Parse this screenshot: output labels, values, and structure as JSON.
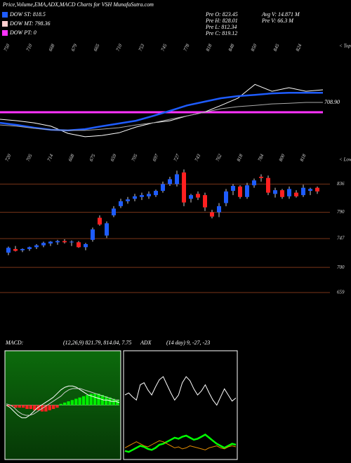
{
  "header": {
    "title": "Price,Volume,EMA,ADX,MACD Charts for VSH MunafaSutra.com",
    "legend": [
      {
        "label": "DOW ST: 818.5",
        "color": "#1e5cff"
      },
      {
        "label": "DOW MT: 798.36",
        "color": "#ffd0d0"
      },
      {
        "label": "DOW PT: 0",
        "color": "#ff33ff"
      }
    ],
    "stats_left": [
      "Pre  O: 823.45",
      "Pre  H: 828.01",
      "Pre  L: 812.34",
      "Pre  C: 819.12"
    ],
    "stats_right": [
      "Avg  V: 14.871 M",
      "Pre  V: 66.3 M"
    ]
  },
  "chart_data": [
    {
      "type": "line",
      "tops_label": "< Tops",
      "tops": [
        750,
        710,
        668,
        679,
        665,
        710,
        753,
        745,
        778,
        818,
        848,
        850,
        845,
        824
      ],
      "annotation": "708.90",
      "ylim": [
        620,
        900
      ],
      "series": [
        {
          "color": "#ffffff",
          "values": [
            725,
            720,
            713,
            702,
            678,
            667,
            671,
            680,
            699,
            713,
            720,
            736,
            748,
            771,
            795,
            841,
            818,
            830,
            818,
            823
          ]
        },
        {
          "color": "#1e5cff",
          "values": [
            713,
            706,
            697,
            690,
            688,
            692,
            702,
            711,
            720,
            736,
            753,
            771,
            783,
            795,
            802,
            806,
            811,
            813,
            813,
            813
          ]
        },
        {
          "color": "#aaaaaa",
          "values": [
            706,
            702,
            695,
            690,
            688,
            688,
            692,
            697,
            706,
            713,
            725,
            736,
            748,
            760,
            767,
            771,
            776,
            778,
            781,
            781
          ]
        }
      ]
    },
    {
      "type": "candlestick",
      "lows_label": "< Lows",
      "lows": [
        720,
        705,
        714,
        668,
        675,
        659,
        705,
        697,
        727,
        743,
        762,
        818,
        784,
        800,
        818
      ],
      "ylim": [
        620,
        880
      ],
      "yticks": [
        836,
        790,
        747,
        700,
        659
      ],
      "up_color": "#1e5cff",
      "down_color": "#ff2020",
      "open": [
        724,
        730,
        728,
        730,
        733,
        736,
        739,
        741,
        743,
        741,
        741,
        733,
        745,
        781,
        752,
        785,
        800,
        808,
        812,
        815,
        816,
        818,
        825,
        836,
        836,
        855,
        812,
        820,
        818,
        790,
        790,
        805,
        825,
        832,
        815,
        834,
        848,
        846,
        820,
        826,
        816,
        822,
        818,
        825,
        830
      ],
      "high": [
        734,
        735,
        731,
        734,
        738,
        742,
        743,
        745,
        746,
        744,
        743,
        740,
        765,
        785,
        775,
        800,
        812,
        815,
        820,
        822,
        824,
        827,
        840,
        848,
        858,
        860,
        820,
        824,
        822,
        794,
        805,
        828,
        836,
        834,
        838,
        845,
        852,
        850,
        830,
        828,
        832,
        826,
        835,
        830,
        832
      ],
      "low": [
        720,
        726,
        725,
        727,
        730,
        733,
        735,
        737,
        739,
        735,
        732,
        728,
        742,
        768,
        748,
        782,
        797,
        804,
        808,
        810,
        812,
        815,
        822,
        833,
        832,
        800,
        806,
        810,
        792,
        780,
        782,
        800,
        818,
        812,
        812,
        830,
        840,
        818,
        814,
        812,
        812,
        814,
        815,
        818,
        820
      ],
      "close": [
        732,
        727,
        730,
        733,
        736,
        740,
        742,
        743,
        741,
        742,
        733,
        738,
        762,
        770,
        772,
        796,
        808,
        811,
        816,
        818,
        820,
        825,
        836,
        844,
        852,
        806,
        818,
        814,
        798,
        783,
        800,
        824,
        833,
        815,
        834,
        842,
        846,
        822,
        826,
        815,
        828,
        816,
        830,
        828,
        824
      ]
    },
    {
      "type": "macd",
      "title": "MACD:",
      "subtitle": "(12,26,9) 821.79, 814.04, 7.75",
      "ylim": [
        -40,
        40
      ],
      "up_color": "#00ee00",
      "down_color": "#ff2020",
      "histogram": [
        -1,
        -1,
        -2,
        -2,
        -2,
        -3,
        -3,
        -4,
        -4,
        -5,
        -5,
        -4,
        -3,
        -2,
        1,
        2,
        3,
        4,
        5,
        6,
        7,
        8,
        9,
        9,
        9,
        8,
        7,
        6,
        5,
        4
      ],
      "series": [
        {
          "color": "#ffffff",
          "values": [
            0,
            -2,
            -5,
            -8,
            -10,
            -10,
            -8,
            -5,
            -2,
            0,
            2,
            4,
            6,
            9,
            12,
            14,
            15,
            15,
            14,
            12,
            10,
            8,
            7,
            6,
            5,
            4,
            4,
            3,
            3,
            2
          ]
        },
        {
          "color": "#cccccc",
          "values": [
            1,
            0,
            -2,
            -5,
            -7,
            -8,
            -8,
            -7,
            -5,
            -3,
            -1,
            1,
            3,
            5,
            7,
            10,
            12,
            13,
            13,
            13,
            12,
            11,
            10,
            9,
            8,
            7,
            6,
            5,
            4,
            4
          ]
        }
      ]
    },
    {
      "type": "adx",
      "title": "ADX",
      "subtitle": "(14 day) 9, -27, -23",
      "ylim": [
        0,
        100
      ],
      "series": [
        {
          "color": "#ffffff",
          "values": [
            60,
            62,
            58,
            55,
            70,
            72,
            65,
            60,
            68,
            75,
            78,
            70,
            62,
            55,
            60,
            72,
            78,
            74,
            66,
            60,
            64,
            70,
            62,
            55,
            50,
            58,
            66,
            60,
            54,
            57
          ]
        },
        {
          "color": "#00ff00",
          "values": [
            5,
            4,
            6,
            8,
            10,
            9,
            7,
            6,
            8,
            11,
            12,
            14,
            16,
            18,
            17,
            19,
            20,
            18,
            16,
            17,
            19,
            21,
            18,
            15,
            12,
            10,
            8,
            10,
            12,
            11
          ]
        },
        {
          "color": "#e08a00",
          "values": [
            8,
            10,
            12,
            14,
            12,
            10,
            9,
            11,
            13,
            15,
            14,
            12,
            10,
            8,
            9,
            7,
            8,
            10,
            9,
            8,
            7,
            6,
            8,
            9,
            10,
            8,
            7,
            9,
            10,
            9
          ]
        }
      ]
    }
  ]
}
